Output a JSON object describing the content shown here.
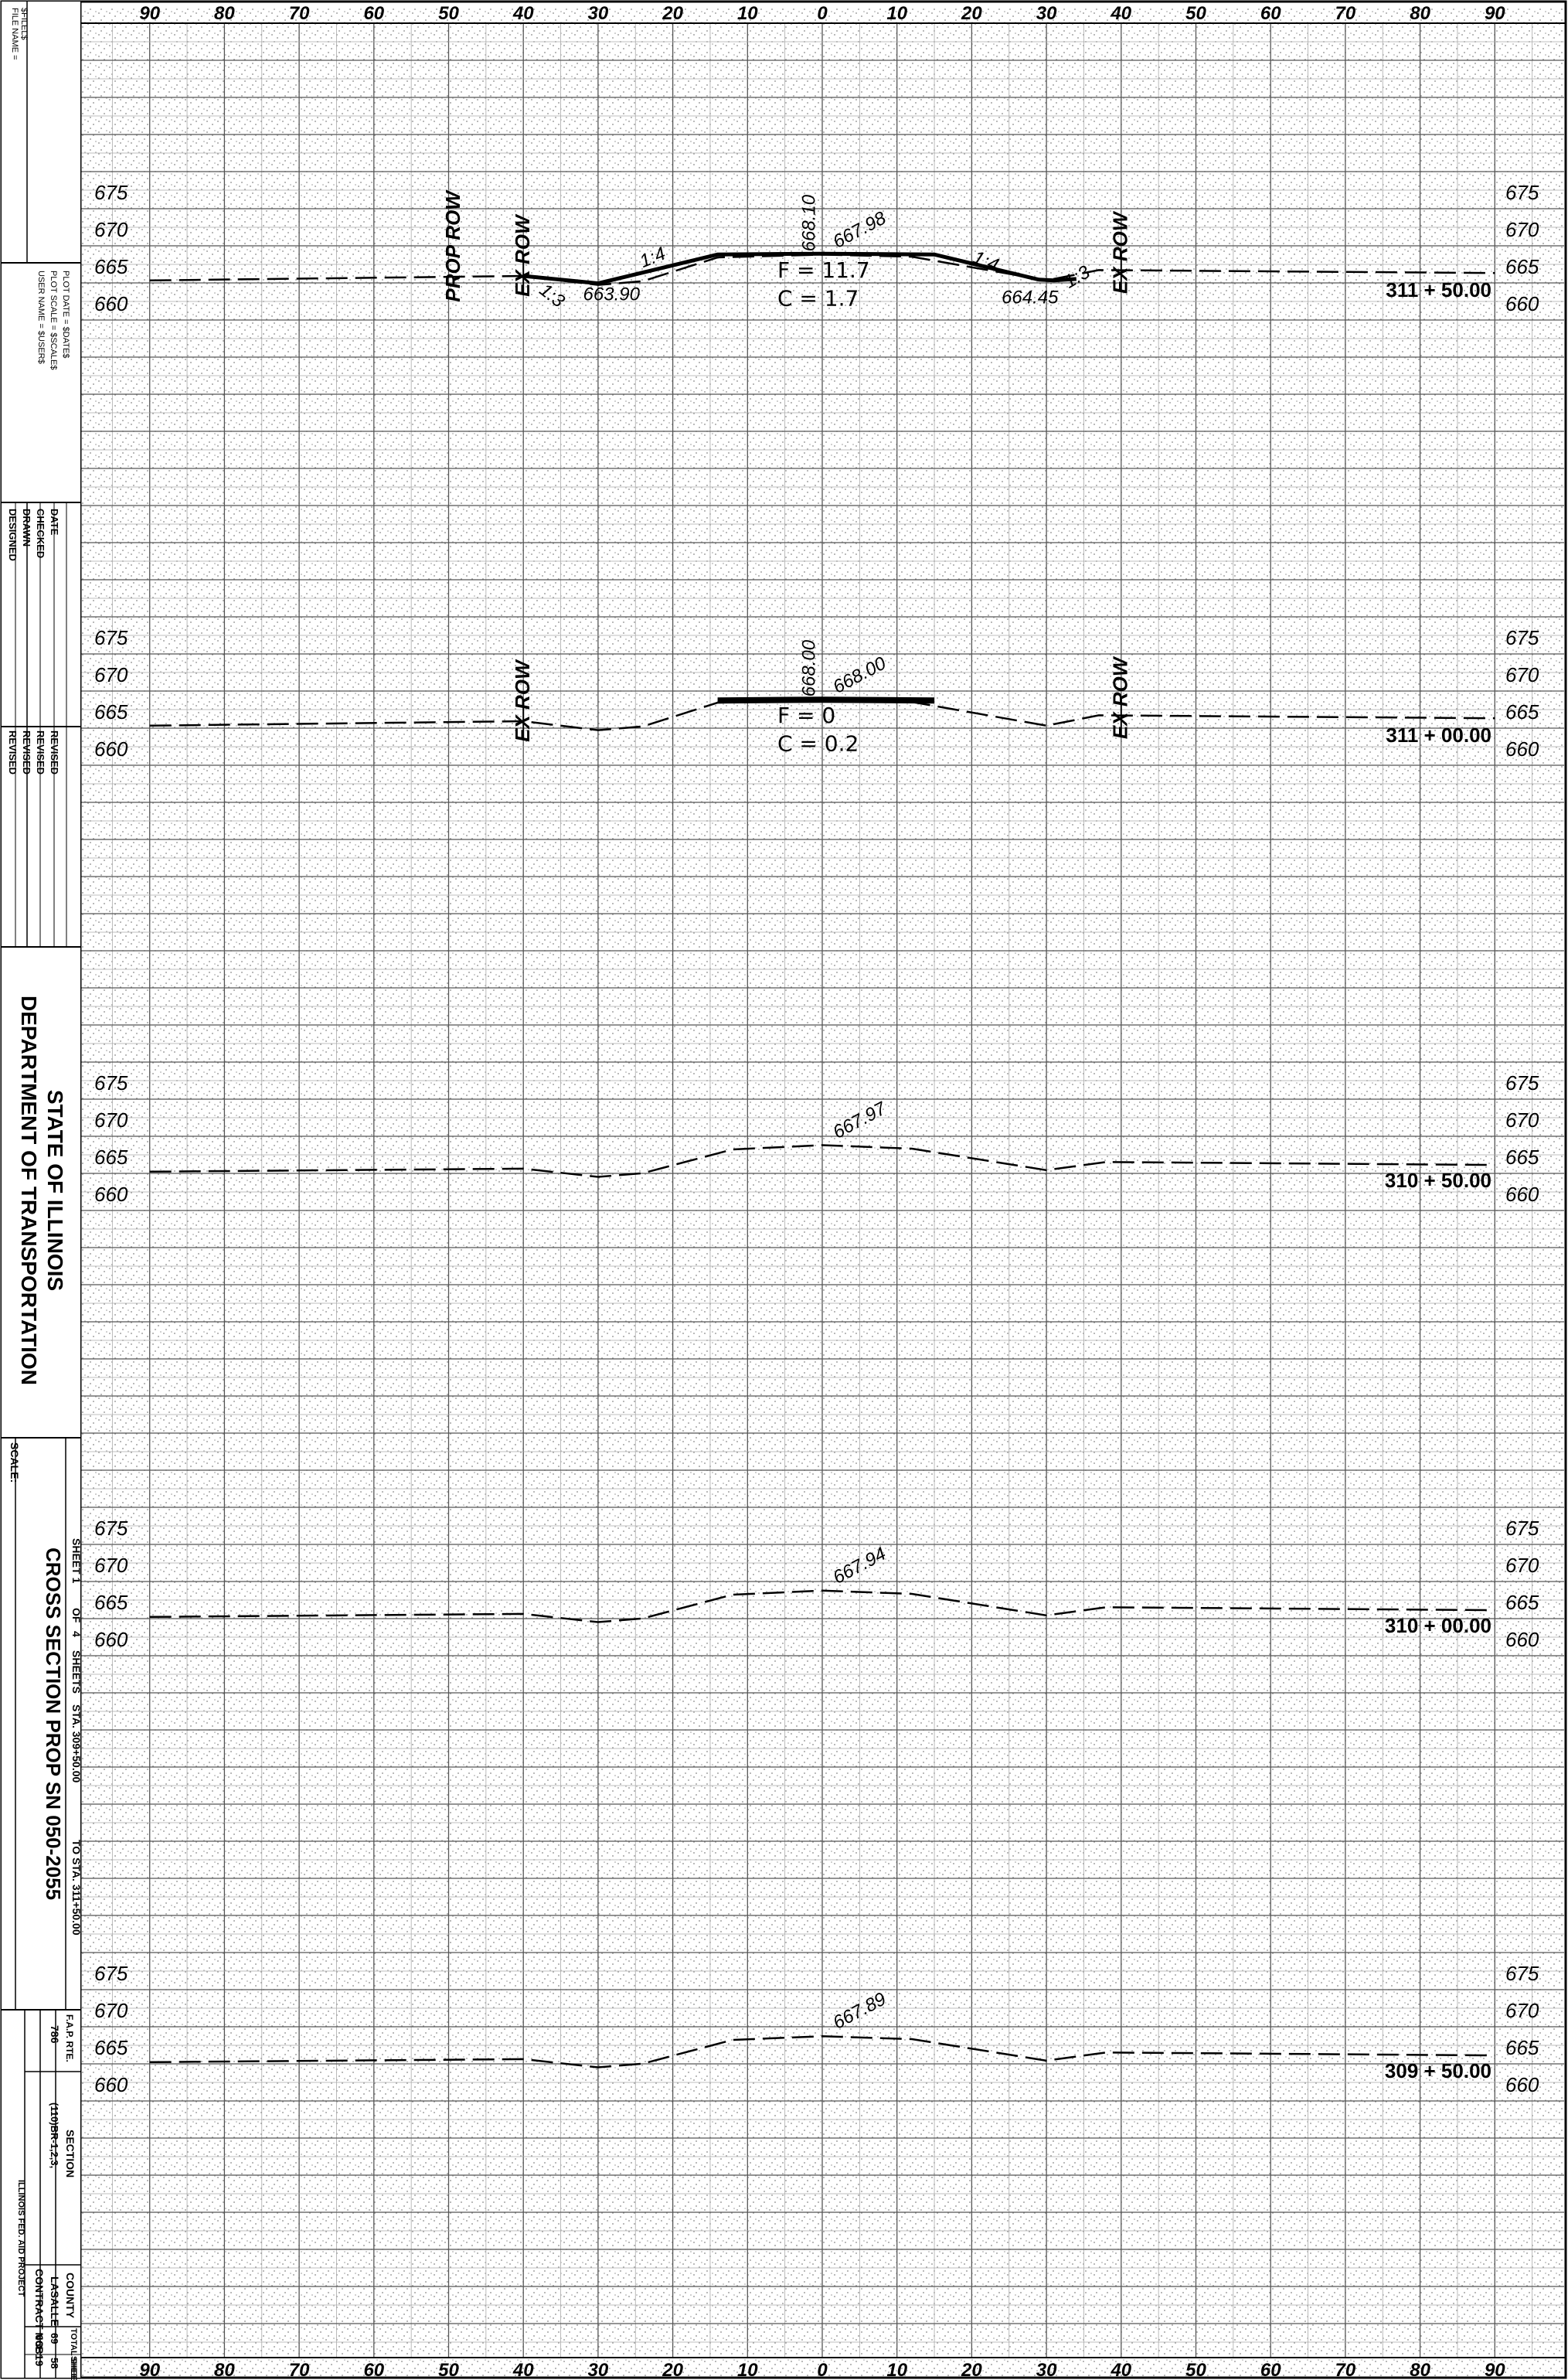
{
  "title_block": {
    "file_name": "FILE NAME =",
    "file_name_value": "$FILEL$",
    "user_name": "USER NAME = $USER$",
    "plot_scale": "PLOT SCALE = $SCALE$",
    "plot_date": "PLOT DATE = $DATE$",
    "designed": "DESIGNED",
    "drawn": "DRAWN",
    "checked": "CHECKED",
    "date": "DATE",
    "revised": "REVISED",
    "dash": "-",
    "agency_line1": "STATE OF ILLINOIS",
    "agency_line2": "DEPARTMENT OF TRANSPORTATION",
    "sheet_title": "CROSS SECTION PROP SN 050-2055",
    "scale_label": "SCALE:",
    "sheet_of": "SHEET 1",
    "of": "OF",
    "sheets_count": "4",
    "sheets": "SHEETS",
    "sta_range_from": "STA. 309+50.00",
    "sta_range_to": "TO STA. 311+50.00",
    "fap_rte_label": "F.A.P. RTE.",
    "fap_rte": "786",
    "section_label": "SECTION",
    "section": "(110)BR-1,2,3,",
    "county_label": "COUNTY",
    "county": "LASALLE",
    "total_sheets_label": "TOTAL SHEETS",
    "total_sheets": "69",
    "sheet_no_label": "SHEET NO.",
    "sheet_no": "58",
    "contract_label": "CONTRACT NO.",
    "contract": "66B19",
    "project_label": "ILLINOIS FED. AID PROJECT"
  },
  "x_axis_labels": [
    "90",
    "80",
    "70",
    "60",
    "50",
    "40",
    "30",
    "20",
    "10",
    "0",
    "10",
    "20",
    "30",
    "40",
    "50",
    "60",
    "70",
    "80",
    "90"
  ],
  "sections": [
    {
      "station": "311 + 50.00",
      "elev_labels": [
        "675",
        "670",
        "665",
        "660"
      ],
      "centerline_elev_prop": "668.10",
      "centerline_elev_ex": "667.98",
      "fill": "F = 11.7",
      "cut": "C = 1.7",
      "left_ditch": "663.90",
      "right_ditch": "664.45",
      "slope_left_outer": "1:3",
      "slope_left_inner": "1:4",
      "slope_right_inner": "1:4",
      "slope_right_outer": "1:3",
      "prop_row": "PROP ROW",
      "ex_row_left": "EX ROW",
      "ex_row_right": "EX ROW"
    },
    {
      "station": "311 + 00.00",
      "elev_labels": [
        "675",
        "670",
        "665",
        "660"
      ],
      "centerline_elev_prop": "668.00",
      "centerline_elev_ex": "668.00",
      "fill": "F = 0",
      "cut": "C = 0.2",
      "ex_row_left": "EX ROW",
      "ex_row_right": "EX ROW"
    },
    {
      "station": "310 + 50.00",
      "elev_labels": [
        "675",
        "670",
        "665",
        "660"
      ],
      "centerline_elev_ex": "667.97"
    },
    {
      "station": "310 + 00.00",
      "elev_labels": [
        "675",
        "670",
        "665",
        "660"
      ],
      "centerline_elev_ex": "667.94"
    },
    {
      "station": "309 + 50.00",
      "elev_labels": [
        "675",
        "670",
        "665",
        "660"
      ],
      "centerline_elev_ex": "667.89"
    }
  ]
}
